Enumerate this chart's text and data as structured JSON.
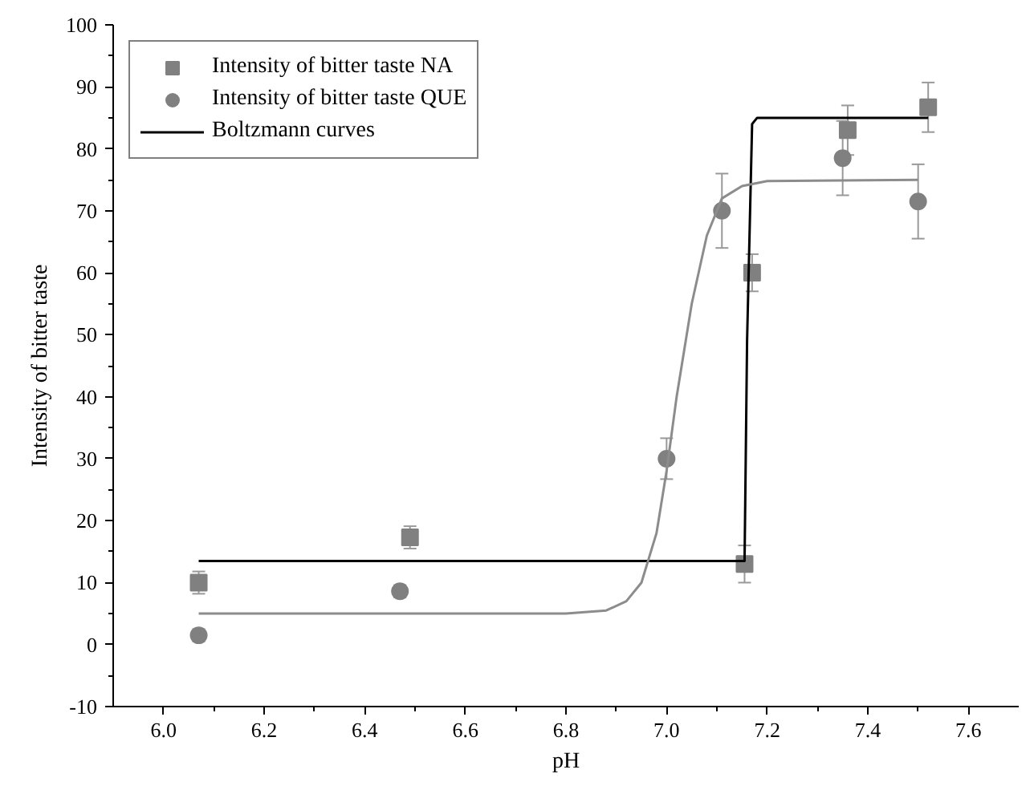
{
  "chart_data": {
    "type": "scatter",
    "xlabel": "pH",
    "ylabel": "Intensity of bitter taste",
    "xlim": [
      5.9,
      7.7
    ],
    "xticks": [
      {
        "value": 6,
        "label": "6.0"
      },
      6.2,
      6.4,
      6.6,
      6.8,
      {
        "value": 7,
        "label": "7.0"
      },
      7.2,
      7.4,
      7.6
    ],
    "ylim": [
      -10,
      100
    ],
    "yticks": [
      -10,
      0,
      10,
      20,
      30,
      40,
      50,
      60,
      70,
      80,
      90,
      100
    ],
    "grid": false,
    "legend": "top left",
    "series": [
      {
        "name": "Intensity of bitter taste NA",
        "marker": "square",
        "color": "#808080",
        "x": [
          6.07,
          6.49,
          7.155,
          7.17,
          7.36,
          7.52
        ],
        "values": [
          10,
          17.3,
          13,
          60,
          83,
          86.7
        ],
        "errors": [
          1.8,
          1.8,
          3,
          3,
          4,
          4
        ]
      },
      {
        "name": "Intensity of bitter taste QUE",
        "marker": "circle",
        "color": "#808080",
        "x": [
          6.07,
          6.47,
          7.0,
          7.11,
          7.35,
          7.5
        ],
        "values": [
          1.5,
          8.6,
          30,
          70,
          78.5,
          71.5
        ],
        "errors": [
          1,
          1,
          3.3,
          6,
          6,
          6
        ]
      },
      {
        "name": "Boltzmann curves",
        "type": "line",
        "marker": "none",
        "color": "#000000",
        "x": [
          6.07,
          7.155,
          7.16,
          7.17,
          7.18,
          7.52
        ],
        "values": [
          13.5,
          13.5,
          49,
          84,
          85,
          85
        ]
      },
      {
        "type": "line",
        "marker": "none",
        "color": "#8c8c8c",
        "x": [
          6.07,
          6.8,
          6.88,
          6.92,
          6.95,
          6.98,
          7.0,
          7.02,
          7.05,
          7.08,
          7.11,
          7.15,
          7.2,
          7.5
        ],
        "values": [
          5,
          5,
          5.5,
          7,
          10,
          18,
          28,
          40,
          55,
          66,
          72,
          74,
          74.8,
          75
        ]
      }
    ]
  }
}
